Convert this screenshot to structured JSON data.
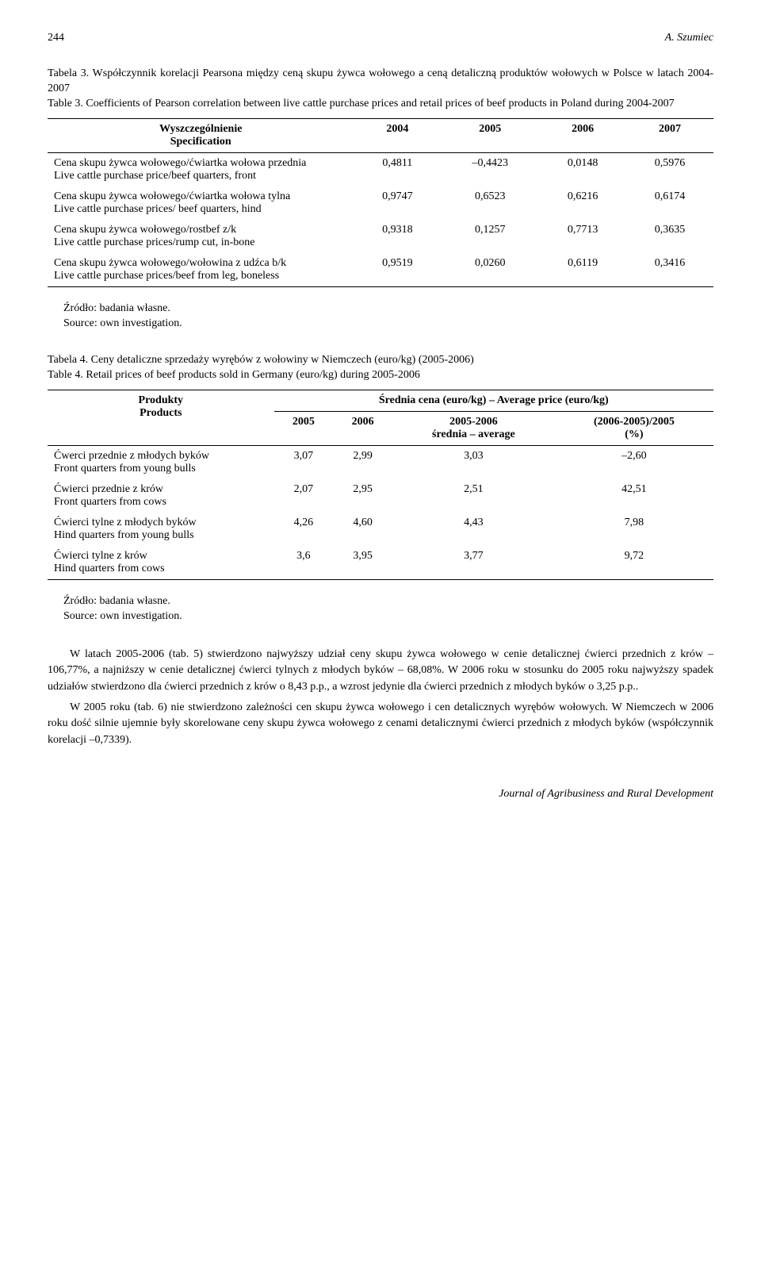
{
  "header": {
    "page_num": "244",
    "author": "A. Szumiec"
  },
  "table3": {
    "caption_pl": "Tabela 3. Współczynnik korelacji Pearsona między ceną skupu żywca wołowego a ceną detaliczną produktów wołowych w Polsce w latach 2004-2007",
    "caption_en": "Table 3.  Coefficients of Pearson correlation between live cattle purchase prices and retail prices of beef products in Poland during 2004-2007",
    "spec_pl": "Wyszczególnienie",
    "spec_en": "Specification",
    "years": [
      "2004",
      "2005",
      "2006",
      "2007"
    ],
    "rows": [
      {
        "label_pl": "Cena skupu żywca wołowego/ćwiartka wołowa przednia",
        "label_en": "Live cattle purchase price/beef quarters, front",
        "vals": [
          "0,4811",
          "–0,4423",
          "0,0148",
          "0,5976"
        ]
      },
      {
        "label_pl": "Cena skupu żywca wołowego/ćwiartka wołowa tylna",
        "label_en": "Live cattle purchase prices/ beef quarters, hind",
        "vals": [
          "0,9747",
          "0,6523",
          "0,6216",
          "0,6174"
        ]
      },
      {
        "label_pl": "Cena skupu żywca wołowego/rostbef z/k",
        "label_en": "Live cattle purchase prices/rump cut, in-bone",
        "vals": [
          "0,9318",
          "0,1257",
          "0,7713",
          "0,3635"
        ]
      },
      {
        "label_pl": "Cena skupu żywca wołowego/wołowina z udźca b/k",
        "label_en": "Live cattle purchase prices/beef from leg, boneless",
        "vals": [
          "0,9519",
          "0,0260",
          "0,6119",
          "0,3416"
        ]
      }
    ]
  },
  "source": {
    "pl": "Źródło: badania własne.",
    "en": "Source: own investigation."
  },
  "table4": {
    "caption_pl": "Tabela 4. Ceny detaliczne sprzedaży wyrębów z wołowiny w Niemczech (euro/kg) (2005-2006)",
    "caption_en": "Table 4.  Retail prices of beef products sold in Germany (euro/kg) during 2005-2006",
    "products_pl": "Produkty",
    "products_en": "Products",
    "avg_header": "Średnia cena (euro/kg) – Average price (euro/kg)",
    "col_2005": "2005",
    "col_2006": "2006",
    "col_avg_range": "2005-2006",
    "col_avg_sub": "średnia – average",
    "col_change": "(2006-2005)/2005",
    "col_change_sub": "(%)",
    "rows": [
      {
        "label_pl": "Ćwerci przednie z młodych byków",
        "label_en": "Front quarters from young bulls",
        "vals": [
          "3,07",
          "2,99",
          "3,03",
          "–2,60"
        ]
      },
      {
        "label_pl": "Ćwierci przednie z krów",
        "label_en": "Front quarters from cows",
        "vals": [
          "2,07",
          "2,95",
          "2,51",
          "42,51"
        ]
      },
      {
        "label_pl": "Ćwierci tylne z młodych byków",
        "label_en": "Hind quarters from young bulls",
        "vals": [
          "4,26",
          "4,60",
          "4,43",
          "7,98"
        ]
      },
      {
        "label_pl": "Ćwierci tylne z krów",
        "label_en": "Hind quarters from cows",
        "vals": [
          "3,6",
          "3,95",
          "3,77",
          "9,72"
        ]
      }
    ]
  },
  "body": {
    "p1": "W latach 2005-2006 (tab. 5) stwierdzono najwyższy udział ceny skupu żywca wołowego w cenie detalicznej ćwierci przednich z krów – 106,77%, a najniższy w cenie detalicznej ćwierci tylnych z młodych byków – 68,08%. W 2006 roku w stosunku do 2005 roku najwyższy spadek udziałów stwierdzono dla ćwierci przednich z krów o 8,43 p.p., a wzrost jedynie dla ćwierci przednich z młodych byków o 3,25 p.p..",
    "p2": "W 2005 roku (tab. 6) nie stwierdzono zależności cen skupu żywca wołowego i cen detalicznych wyrębów wołowych. W Niemczech w 2006 roku dość silnie ujemnie były skorelowane ceny skupu żywca wołowego z cenami detalicznymi ćwierci przednich z młodych byków (współczynnik korelacji –0,7339)."
  },
  "footer": "Journal of Agribusiness and Rural Development"
}
